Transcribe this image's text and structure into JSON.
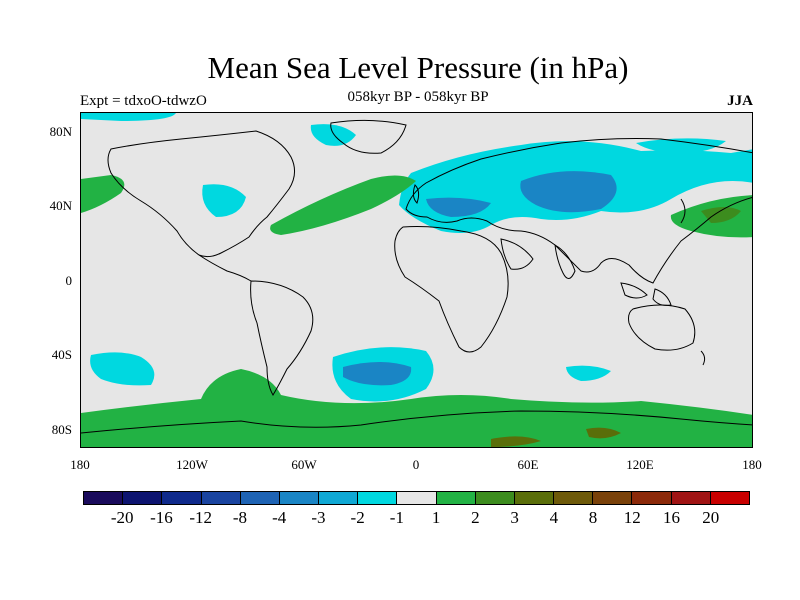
{
  "title": "Mean Sea Level Pressure (in hPa)",
  "subtitle": "058kyr BP - 058kyr BP",
  "experiment": "Expt = tdxoO-tdwzO",
  "season": "JJA",
  "lat_labels": [
    "80N",
    "40N",
    "0",
    "40S",
    "80S"
  ],
  "lon_labels": [
    "180",
    "120W",
    "60W",
    "0",
    "60E",
    "120E",
    "180"
  ],
  "colorbar": {
    "colors": [
      "#1a0b5c",
      "#0d1470",
      "#0f2a8c",
      "#1a44a0",
      "#1e63b4",
      "#1a85c5",
      "#0fa8d4",
      "#00d8e0",
      "#e6e6e6",
      "#22b244",
      "#3c8c1e",
      "#5a6e0a",
      "#6e5a0a",
      "#7a420a",
      "#8c2a0a",
      "#a01414",
      "#c80000"
    ],
    "labels": [
      "-20",
      "-16",
      "-12",
      "-8",
      "-4",
      "-3",
      "-2",
      "-1",
      "1",
      "2",
      "3",
      "4",
      "8",
      "12",
      "16",
      "20"
    ]
  }
}
